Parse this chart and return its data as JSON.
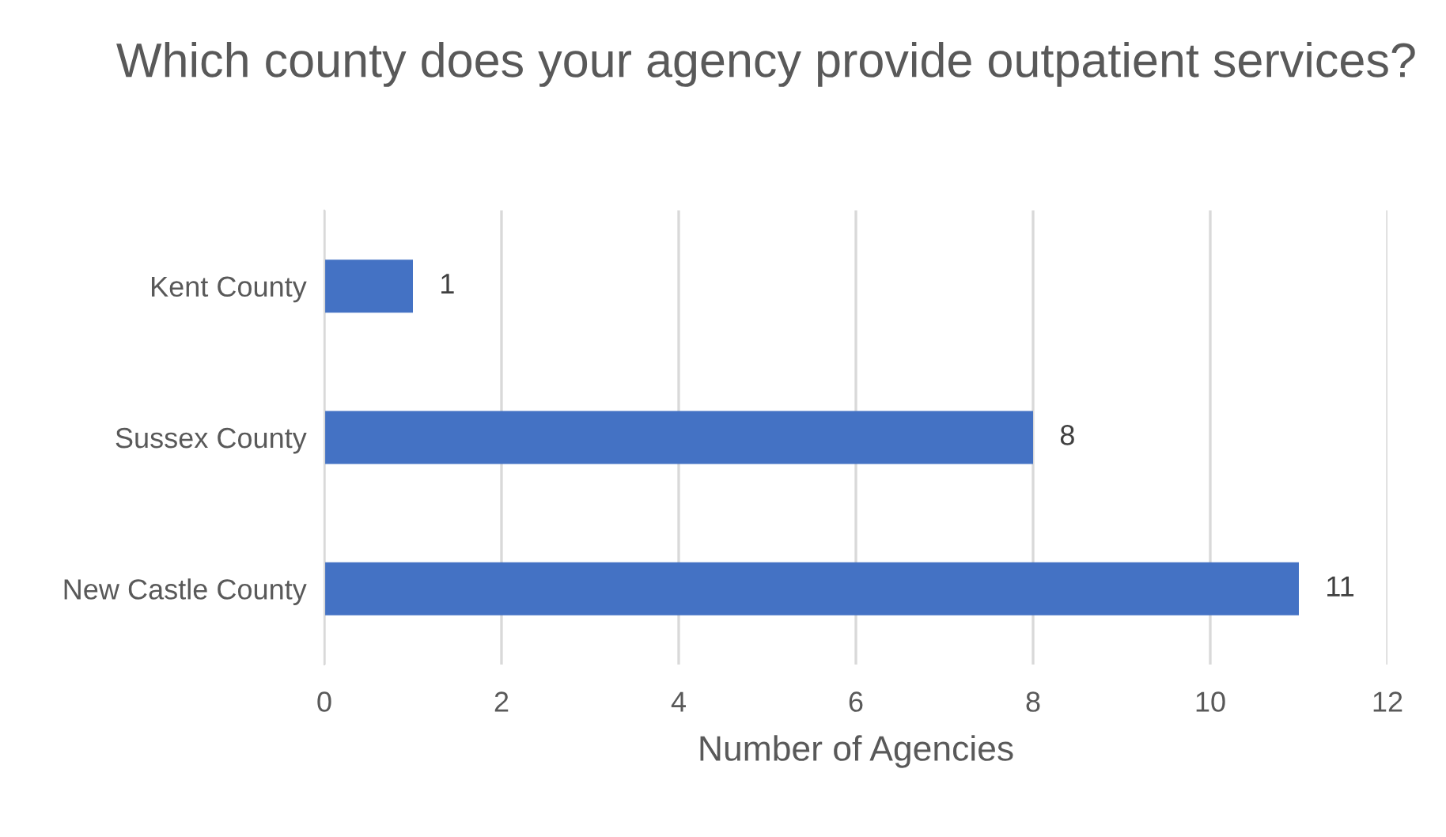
{
  "chart_data": {
    "type": "bar",
    "orientation": "horizontal",
    "title": "Which county does your agency provide outpatient services?",
    "xlabel": "Number of Agencies",
    "categories": [
      "Kent County",
      "Sussex County",
      "New Castle County"
    ],
    "values": [
      1,
      8,
      11
    ],
    "color": "#4472c4",
    "xlim": [
      0,
      12
    ],
    "xticks": [
      0,
      2,
      4,
      6,
      8,
      10,
      12
    ],
    "grid": "x",
    "data_labels": true
  }
}
